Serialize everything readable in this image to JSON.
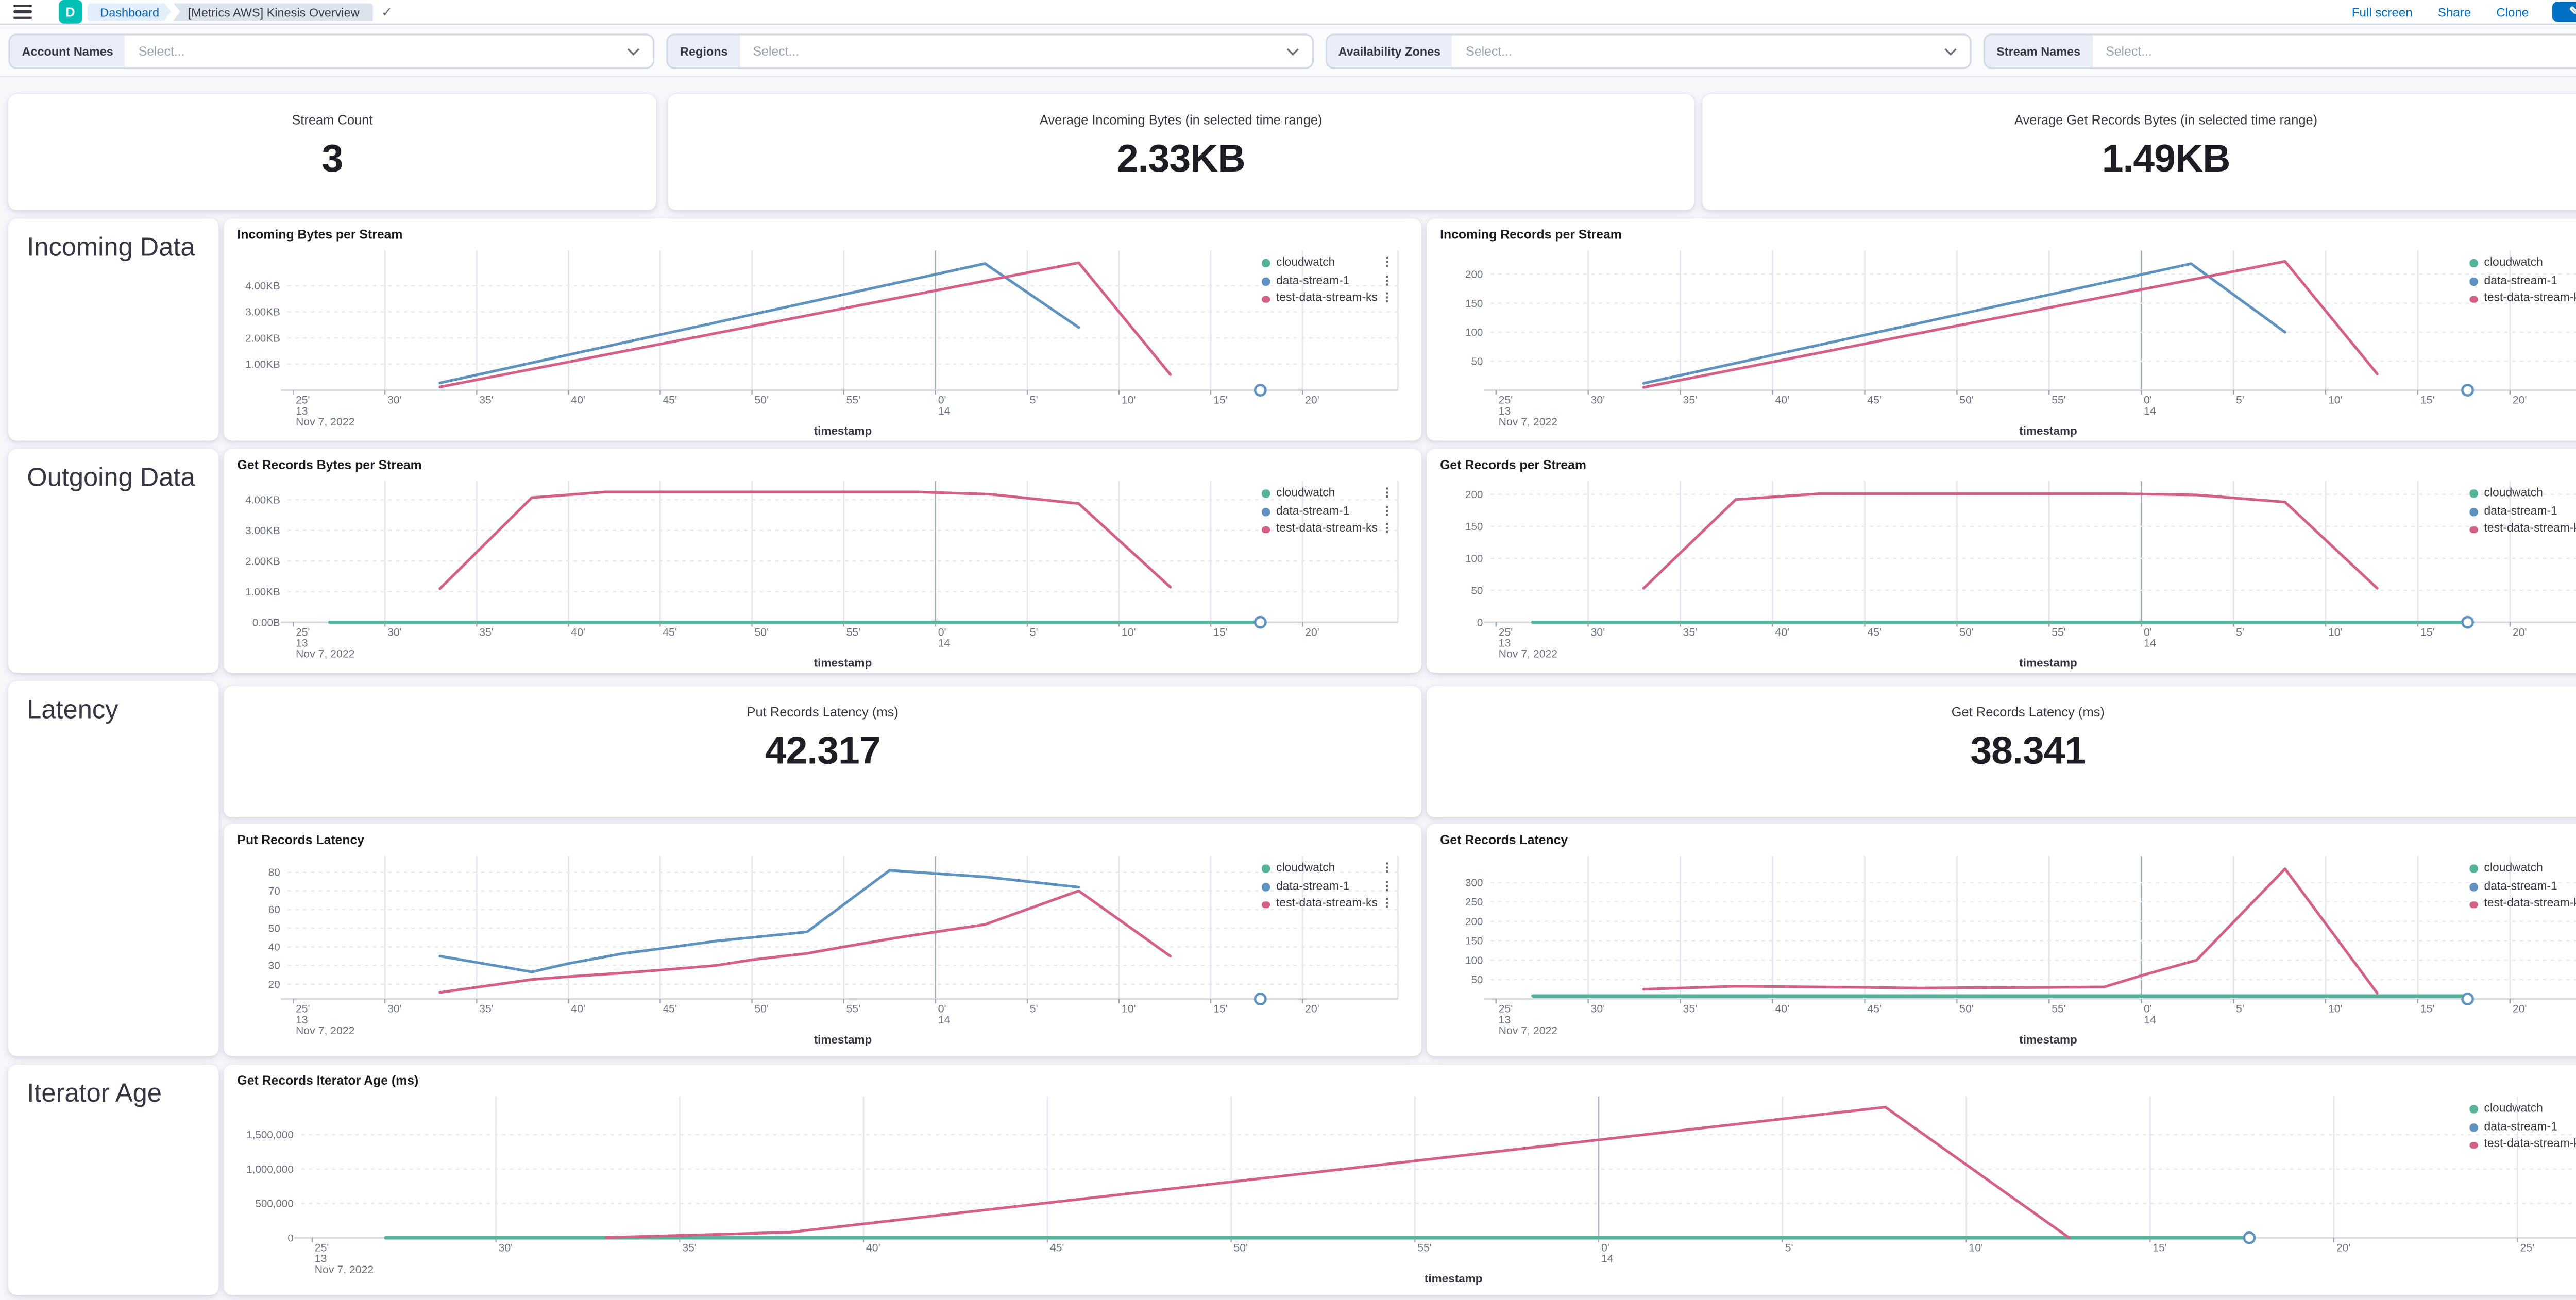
{
  "topbar": {
    "logo_letter": "D",
    "breadcrumbs": [
      {
        "label": "Dashboard"
      },
      {
        "label": "[Metrics AWS] Kinesis Overview"
      }
    ],
    "saved_icon": "check-icon",
    "actions": [
      {
        "label": "Full screen"
      },
      {
        "label": "Share"
      },
      {
        "label": "Clone"
      }
    ],
    "edit_button": {
      "label": "Edit"
    }
  },
  "colors": {
    "accent_blue": "#0071c2",
    "link_blue": "#006bb8",
    "logo_teal": "#00bfb3",
    "series_cloudwatch": "#54b399",
    "series_data_stream_1": "#6092c0",
    "series_test_data_stream_ks": "#d36086",
    "annotation_marker": "#6092c0"
  },
  "filters": [
    {
      "label": "Account Names",
      "placeholder": "Select..."
    },
    {
      "label": "Regions",
      "placeholder": "Select..."
    },
    {
      "label": "Availability Zones",
      "placeholder": "Select..."
    },
    {
      "label": "Stream Names",
      "placeholder": "Select..."
    }
  ],
  "metric_cards": [
    {
      "label": "Stream Count",
      "value": "3"
    },
    {
      "label": "Average Incoming Bytes (in selected time range)",
      "value": "2.33KB"
    },
    {
      "label": "Average Get Records Bytes (in selected time range)",
      "value": "1.49KB"
    }
  ],
  "latency_metric_cards": [
    {
      "label": "Put Records Latency (ms)",
      "value": "42.317"
    },
    {
      "label": "Get Records Latency (ms)",
      "value": "38.341"
    }
  ],
  "section_labels": [
    "Incoming Data",
    "Outgoing Data",
    "Latency",
    "Iterator Age"
  ],
  "legend_series": [
    {
      "name": "cloudwatch",
      "color": "#54b399"
    },
    {
      "name": "data-stream-1",
      "color": "#6092c0"
    },
    {
      "name": "test-data-stream-ks",
      "color": "#d36086"
    }
  ],
  "chart_data": [
    {
      "type": "line",
      "title": "Incoming Bytes per Stream",
      "xlabel": "timestamp",
      "x": {
        "domain": [
          -0.3,
          60.2
        ],
        "hour_m": 35,
        "ticks_m": [
          0,
          5,
          10,
          15,
          20,
          25,
          30,
          35,
          40,
          45,
          50,
          55
        ],
        "tick_labels": [
          "25'",
          "30'",
          "35'",
          "40'",
          "45'",
          "50'",
          "55'",
          "0'",
          "5'",
          "10'",
          "15'",
          "20'"
        ],
        "sub_labels": {
          "0": "13",
          "35": "14"
        },
        "date_labels": {
          "0": "Nov 7, 2022"
        }
      },
      "y": {
        "domain": [
          0,
          5.15
        ],
        "ticks": [
          1,
          2,
          3,
          4
        ],
        "tick_labels": [
          "1.00KB",
          "2.00KB",
          "3.00KB",
          "4.00KB"
        ]
      },
      "series": [
        {
          "name": "data-stream-1",
          "points": [
            [
              8,
              0.28
            ],
            [
              37.7,
              4.85
            ],
            [
              42.8,
              2.4
            ]
          ]
        },
        {
          "name": "test-data-stream-ks",
          "points": [
            [
              8,
              0.12
            ],
            [
              42.8,
              4.88
            ],
            [
              47.8,
              0.6
            ]
          ]
        }
      ],
      "annotation": {
        "m": 52.7
      },
      "legend": [
        "cloudwatch",
        "data-stream-1",
        "test-data-stream-ks"
      ]
    },
    {
      "type": "line",
      "title": "Incoming Records per Stream",
      "xlabel": "timestamp",
      "x": {
        "domain": [
          -0.3,
          60.2
        ],
        "hour_m": 35,
        "ticks_m": [
          0,
          5,
          10,
          15,
          20,
          25,
          30,
          35,
          40,
          45,
          50,
          55
        ],
        "tick_labels": [
          "25'",
          "30'",
          "35'",
          "40'",
          "45'",
          "50'",
          "55'",
          "0'",
          "5'",
          "10'",
          "15'",
          "20'"
        ],
        "sub_labels": {
          "0": "13",
          "35": "14"
        },
        "date_labels": {
          "0": "Nov 7, 2022"
        }
      },
      "y": {
        "domain": [
          0,
          232
        ],
        "ticks": [
          50,
          100,
          150,
          200
        ],
        "tick_labels": [
          "50",
          "100",
          "150",
          "200"
        ]
      },
      "series": [
        {
          "name": "data-stream-1",
          "points": [
            [
              8,
              12
            ],
            [
              37.7,
              218
            ],
            [
              42.8,
              100
            ]
          ]
        },
        {
          "name": "test-data-stream-ks",
          "points": [
            [
              8,
              5
            ],
            [
              42.8,
              222
            ],
            [
              47.8,
              28
            ]
          ]
        }
      ],
      "annotation": {
        "m": 52.7
      },
      "legend": [
        "cloudwatch",
        "data-stream-1",
        "test-data-stream-ks"
      ]
    },
    {
      "type": "line",
      "title": "Get Records Bytes per Stream",
      "xlabel": "timestamp",
      "x": {
        "domain": [
          -0.3,
          60.2
        ],
        "hour_m": 35,
        "ticks_m": [
          0,
          5,
          10,
          15,
          20,
          25,
          30,
          35,
          40,
          45,
          50,
          55
        ],
        "tick_labels": [
          "25'",
          "30'",
          "35'",
          "40'",
          "45'",
          "50'",
          "55'",
          "0'",
          "5'",
          "10'",
          "15'",
          "20'"
        ],
        "sub_labels": {
          "0": "13",
          "35": "14"
        },
        "date_labels": {
          "0": "Nov 7, 2022"
        }
      },
      "y": {
        "domain": [
          0,
          4.45
        ],
        "ticks": [
          0,
          1,
          2,
          3,
          4
        ],
        "tick_labels": [
          "0.00B",
          "1.00KB",
          "2.00KB",
          "3.00KB",
          "4.00KB"
        ]
      },
      "series": [
        {
          "name": "cloudwatch",
          "points": [
            [
              2,
              0
            ],
            [
              52.7,
              0
            ]
          ]
        },
        {
          "name": "test-data-stream-ks",
          "points": [
            [
              8,
              1.1
            ],
            [
              13,
              4.07
            ],
            [
              17,
              4.26
            ],
            [
              34,
              4.26
            ],
            [
              38,
              4.18
            ],
            [
              42.8,
              3.88
            ],
            [
              47.8,
              1.15
            ]
          ]
        }
      ],
      "annotation": {
        "m": 52.7
      },
      "legend": [
        "cloudwatch",
        "data-stream-1",
        "test-data-stream-ks"
      ]
    },
    {
      "type": "line",
      "title": "Get Records per Stream",
      "xlabel": "timestamp",
      "x": {
        "domain": [
          -0.3,
          60.2
        ],
        "hour_m": 35,
        "ticks_m": [
          0,
          5,
          10,
          15,
          20,
          25,
          30,
          35,
          40,
          45,
          50,
          55
        ],
        "tick_labels": [
          "25'",
          "30'",
          "35'",
          "40'",
          "45'",
          "50'",
          "55'",
          "0'",
          "5'",
          "10'",
          "15'",
          "20'"
        ],
        "sub_labels": {
          "0": "13",
          "35": "14"
        },
        "date_labels": {
          "0": "Nov 7, 2022"
        }
      },
      "y": {
        "domain": [
          0,
          213
        ],
        "ticks": [
          0,
          50,
          100,
          150,
          200
        ],
        "tick_labels": [
          "0",
          "50",
          "100",
          "150",
          "200"
        ]
      },
      "series": [
        {
          "name": "cloudwatch",
          "points": [
            [
              2,
              0
            ],
            [
              52.7,
              0
            ]
          ]
        },
        {
          "name": "test-data-stream-ks",
          "points": [
            [
              8,
              53
            ],
            [
              13,
              192
            ],
            [
              17.5,
              201
            ],
            [
              34,
              201
            ],
            [
              38,
              199
            ],
            [
              42.8,
              188
            ],
            [
              47.8,
              53
            ]
          ]
        }
      ],
      "annotation": {
        "m": 52.7
      },
      "legend": [
        "cloudwatch",
        "data-stream-1",
        "test-data-stream-ks"
      ]
    },
    {
      "type": "line",
      "title": "Put Records Latency",
      "xlabel": "timestamp",
      "x": {
        "domain": [
          -0.3,
          60.2
        ],
        "hour_m": 35,
        "ticks_m": [
          0,
          5,
          10,
          15,
          20,
          25,
          30,
          35,
          40,
          45,
          50,
          55
        ],
        "tick_labels": [
          "25'",
          "30'",
          "35'",
          "40'",
          "45'",
          "50'",
          "55'",
          "0'",
          "5'",
          "10'",
          "15'",
          "20'"
        ],
        "sub_labels": {
          "0": "13",
          "35": "14"
        },
        "date_labels": {
          "0": "Nov 7, 2022"
        }
      },
      "y": {
        "domain": [
          12,
          86
        ],
        "ticks": [
          20,
          30,
          40,
          50,
          60,
          70,
          80
        ],
        "tick_labels": [
          "20",
          "30",
          "40",
          "50",
          "60",
          "70",
          "80"
        ]
      },
      "series": [
        {
          "name": "data-stream-1",
          "points": [
            [
              8,
              35
            ],
            [
              13,
              26.5
            ],
            [
              15,
              31
            ],
            [
              18,
              36.5
            ],
            [
              20,
              39
            ],
            [
              23,
              43
            ],
            [
              25,
              45
            ],
            [
              28,
              48
            ],
            [
              32.5,
              81
            ],
            [
              37.7,
              77.5
            ],
            [
              42.8,
              72
            ]
          ]
        },
        {
          "name": "test-data-stream-ks",
          "points": [
            [
              8,
              15.5
            ],
            [
              13,
              22.5
            ],
            [
              15,
              24
            ],
            [
              18,
              26
            ],
            [
              20,
              27.5
            ],
            [
              23,
              30
            ],
            [
              25,
              33
            ],
            [
              28,
              36.5
            ],
            [
              30,
              40
            ],
            [
              33,
              45
            ],
            [
              37.7,
              52
            ],
            [
              42.8,
              70
            ],
            [
              47.8,
              35
            ]
          ]
        }
      ],
      "annotation": {
        "m": 52.7
      },
      "legend": [
        "cloudwatch",
        "data-stream-1",
        "test-data-stream-ks"
      ]
    },
    {
      "type": "line",
      "title": "Get Records Latency",
      "xlabel": "timestamp",
      "x": {
        "domain": [
          -0.3,
          60.2
        ],
        "hour_m": 35,
        "ticks_m": [
          0,
          5,
          10,
          15,
          20,
          25,
          30,
          35,
          40,
          45,
          50,
          55
        ],
        "tick_labels": [
          "25'",
          "30'",
          "35'",
          "40'",
          "45'",
          "50'",
          "55'",
          "0'",
          "5'",
          "10'",
          "15'",
          "20'"
        ],
        "sub_labels": {
          "0": "13",
          "35": "14"
        },
        "date_labels": {
          "0": "Nov 7, 2022"
        }
      },
      "y": {
        "domain": [
          0,
          355
        ],
        "ticks": [
          50,
          100,
          150,
          200,
          250,
          300
        ],
        "tick_labels": [
          "50",
          "100",
          "150",
          "200",
          "250",
          "300"
        ]
      },
      "series": [
        {
          "name": "cloudwatch",
          "points": [
            [
              2,
              8
            ],
            [
              52.7,
              8
            ]
          ]
        },
        {
          "name": "test-data-stream-ks",
          "points": [
            [
              8,
              25
            ],
            [
              13,
              33
            ],
            [
              15,
              32
            ],
            [
              20,
              30
            ],
            [
              23,
              28
            ],
            [
              25,
              29
            ],
            [
              30,
              30
            ],
            [
              33,
              31
            ],
            [
              35,
              60
            ],
            [
              38,
              100
            ],
            [
              42.8,
              335
            ],
            [
              47.8,
              15
            ]
          ]
        }
      ],
      "annotation": {
        "m": 52.7
      },
      "legend": [
        "cloudwatch",
        "data-stream-1",
        "test-data-stream-ks"
      ]
    },
    {
      "type": "line",
      "title": "Get Records Iterator Age (ms)",
      "xlabel": "timestamp",
      "x": {
        "domain": [
          -0.3,
          62.4
        ],
        "hour_m": 35,
        "ticks_m": [
          0,
          5,
          10,
          15,
          20,
          25,
          30,
          35,
          40,
          45,
          50,
          55,
          60
        ],
        "tick_labels": [
          "25'",
          "30'",
          "35'",
          "40'",
          "45'",
          "50'",
          "55'",
          "0'",
          "5'",
          "10'",
          "15'",
          "20'",
          "25'"
        ],
        "sub_labels": {
          "0": "13",
          "35": "14"
        },
        "date_labels": {
          "0": "Nov 7, 2022"
        }
      },
      "y": {
        "domain": [
          0,
          1980000
        ],
        "ticks": [
          0,
          500000,
          1000000,
          1500000
        ],
        "tick_labels": [
          "0",
          "500,000",
          "1,000,000",
          "1,500,000"
        ]
      },
      "series": [
        {
          "name": "cloudwatch",
          "points": [
            [
              2,
              0
            ],
            [
              52.7,
              0
            ]
          ]
        },
        {
          "name": "test-data-stream-ks",
          "points": [
            [
              8,
              5000
            ],
            [
              13,
              80000
            ],
            [
              42.8,
              1900000
            ],
            [
              47.8,
              0
            ]
          ]
        }
      ],
      "annotation": {
        "m": 52.7
      },
      "legend": [
        "cloudwatch",
        "data-stream-1",
        "test-data-stream-ks"
      ]
    }
  ]
}
